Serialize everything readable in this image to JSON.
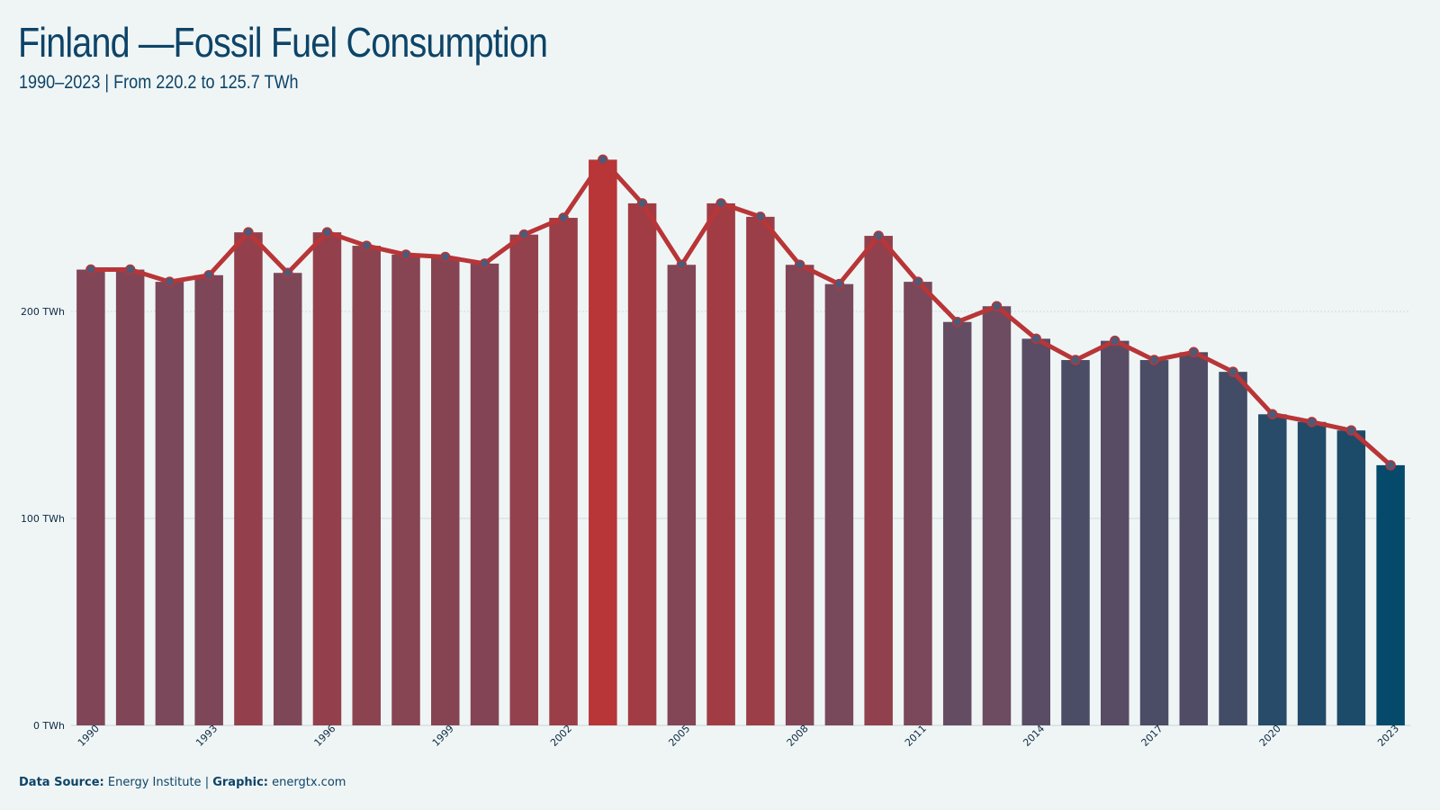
{
  "title": "Finland —Fossil Fuel Consumption",
  "subtitle": "1990–2023 | From 220.2 to 125.7 TWh",
  "footer": {
    "source_label": "Data Source:",
    "source_value": "Energy Institute",
    "separator": "|",
    "graphic_label": "Graphic:",
    "graphic_value": "energtx.com"
  },
  "colors": {
    "background": "#eff5f5",
    "text": "#0d4468",
    "line": "#b83538",
    "high": "#b83538",
    "mid": "#6a4d63",
    "low": "#054a6b",
    "marker": "#4d5a78",
    "grid": "#c9d3d6"
  },
  "chart_data": {
    "type": "bar",
    "title": "Finland —Fossil Fuel Consumption",
    "subtitle": "1990–2023 | From 220.2 to 125.7 TWh",
    "xlabel": "",
    "ylabel": "",
    "unit": "TWh",
    "ylim": [
      0,
      275
    ],
    "yticks": [
      0,
      100,
      200
    ],
    "ytick_labels": [
      "0 TWh",
      "100 TWh",
      "200 TWh"
    ],
    "xtick_labels": [
      "1990",
      "1993",
      "1996",
      "1999",
      "2002",
      "2005",
      "2008",
      "2011",
      "2014",
      "2017",
      "2020",
      "2023"
    ],
    "grid": true,
    "legend": "none",
    "overlay": "line with markers",
    "categories": [
      1990,
      1991,
      1992,
      1993,
      1994,
      1995,
      1996,
      1997,
      1998,
      1999,
      2000,
      2001,
      2002,
      2003,
      2004,
      2005,
      2006,
      2007,
      2008,
      2009,
      2010,
      2011,
      2012,
      2013,
      2014,
      2015,
      2016,
      2017,
      2018,
      2019,
      2020,
      2021,
      2022,
      2023
    ],
    "values": [
      220.2,
      220.2,
      214.3,
      217.5,
      238.2,
      218.6,
      238.2,
      231.7,
      227.4,
      226.3,
      223.1,
      237.1,
      245.2,
      273.3,
      252.2,
      222.5,
      252.2,
      245.7,
      222.5,
      213.2,
      236.5,
      214.3,
      194.9,
      202.5,
      186.8,
      176.5,
      185.8,
      176.5,
      180.3,
      170.8,
      150.3,
      146.6,
      142.5,
      125.7
    ]
  }
}
